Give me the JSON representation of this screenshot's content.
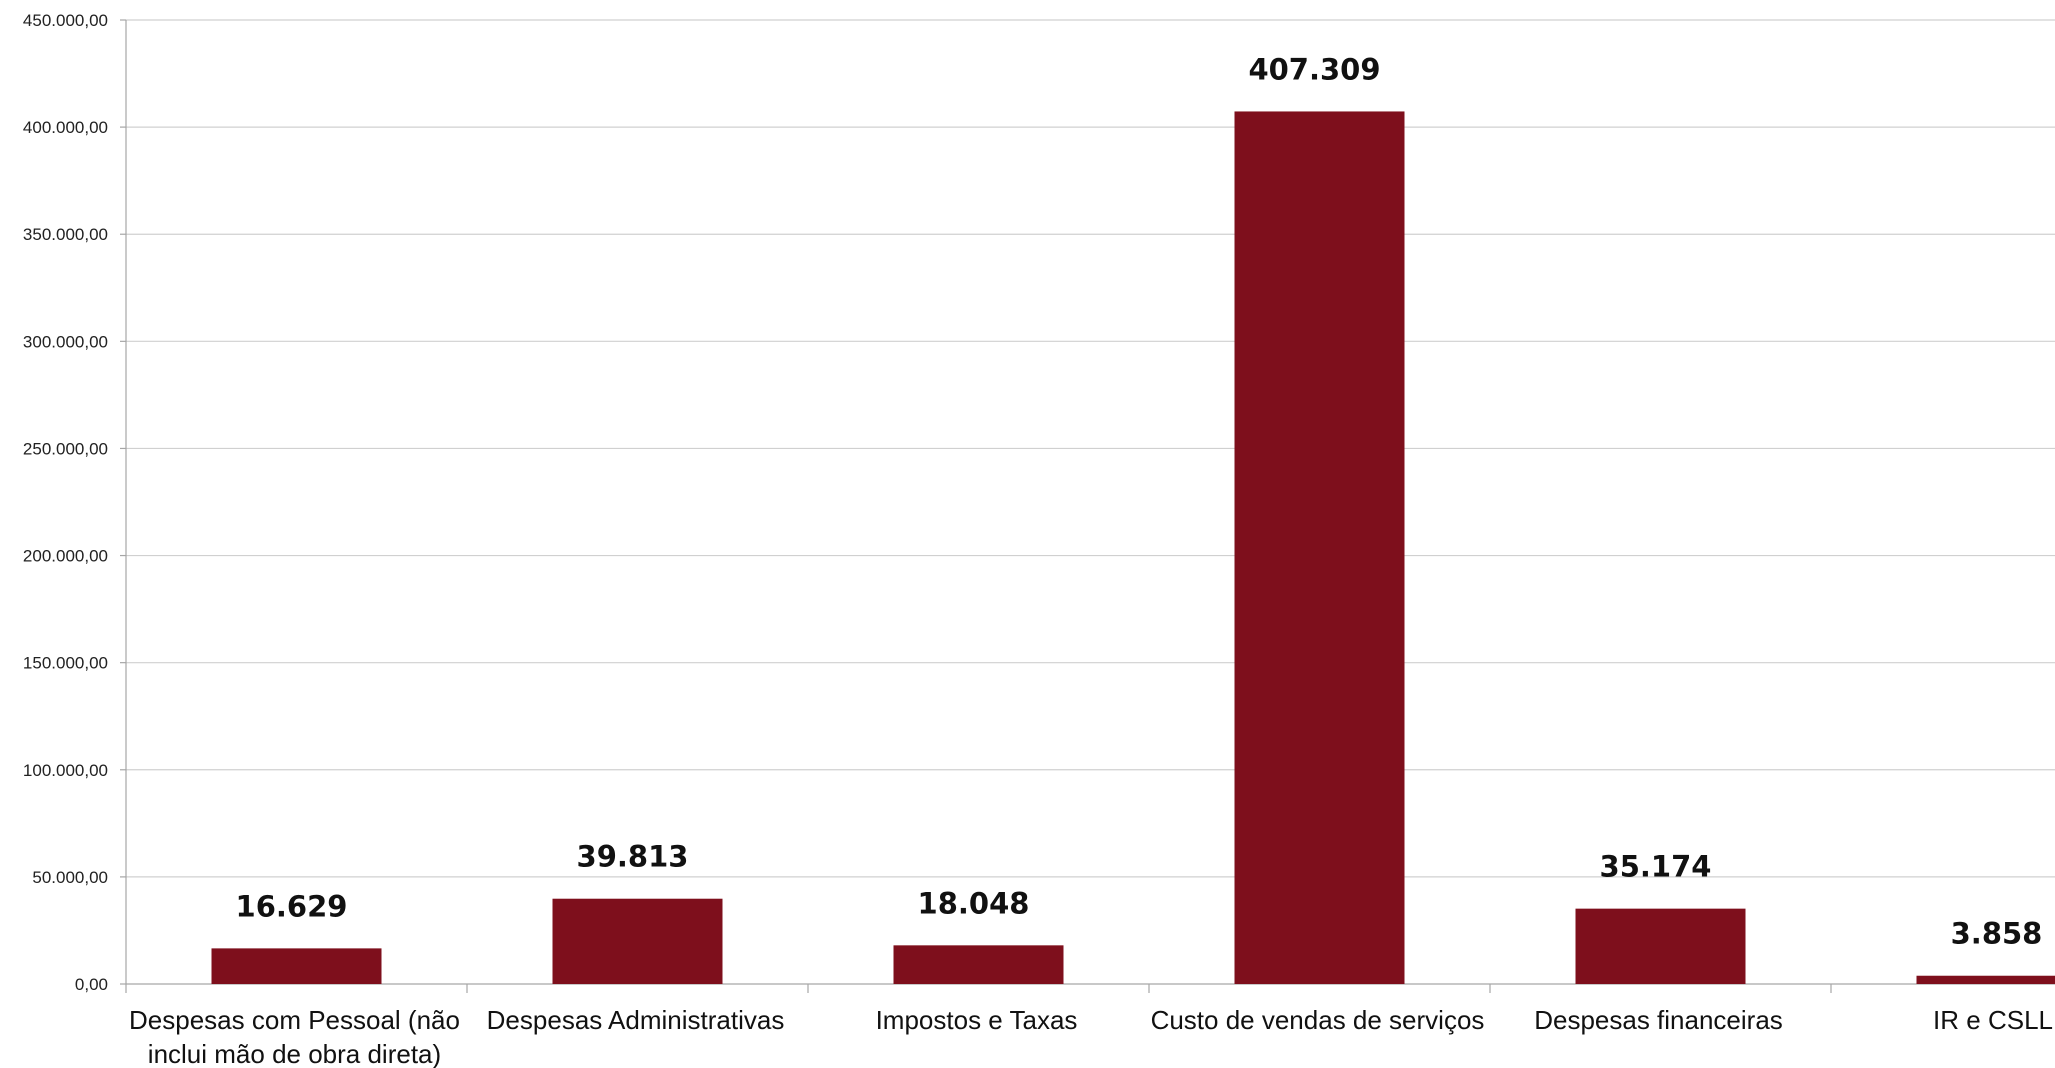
{
  "chart_data": {
    "type": "bar",
    "title": "",
    "xlabel": "",
    "ylabel": "",
    "categories": [
      "Despesas com Pessoal (não inclui mão de obra direta)",
      "Despesas Administrativas",
      "Impostos e Taxas",
      "Custo de vendas de serviços",
      "Despesas financeiras",
      "IR e CSLL"
    ],
    "category_lines": [
      [
        "Despesas com Pessoal (não",
        "inclui mão de obra direta)"
      ],
      [
        "Despesas Administrativas"
      ],
      [
        "Impostos e Taxas"
      ],
      [
        "Custo de vendas de serviços"
      ],
      [
        "Despesas financeiras"
      ],
      [
        "IR e CSLL"
      ]
    ],
    "values": [
      16629,
      39813,
      18048,
      407309,
      35174,
      3858
    ],
    "data_labels": [
      "16.629",
      "39.813",
      "18.048",
      "407.309",
      "35.174",
      "3.858"
    ],
    "ylim": [
      0,
      450000
    ],
    "y_ticks": [
      0,
      50000,
      100000,
      150000,
      200000,
      250000,
      300000,
      350000,
      400000,
      450000
    ],
    "y_tick_labels": [
      "0,00",
      "50.000,00",
      "100.000,00",
      "150.000,00",
      "200.000,00",
      "250.000,00",
      "300.000,00",
      "350.000,00",
      "400.000,00",
      "450.000,00"
    ],
    "grid": true,
    "legend": "none",
    "bar_color": "#7e0f1c",
    "grid_color": "#d0d0d0",
    "axis_color": "#a6a6a6"
  }
}
